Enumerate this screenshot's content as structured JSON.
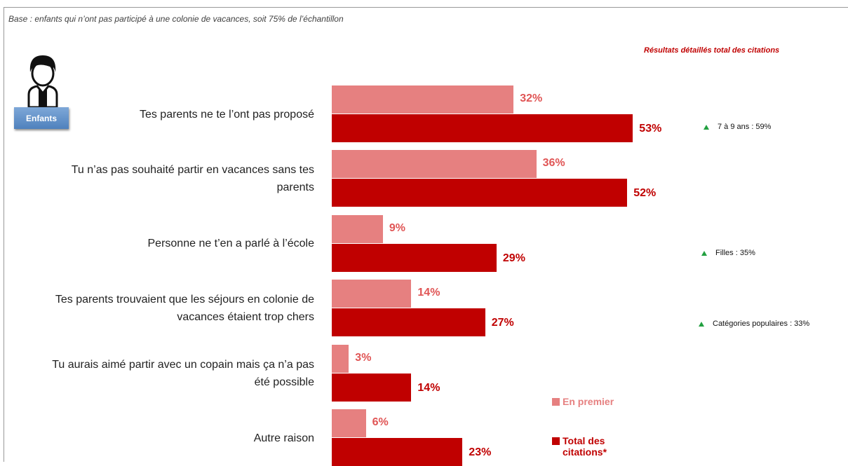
{
  "chart_data": {
    "type": "bar",
    "orientation": "horizontal",
    "subtitle": "Base : enfants qui n’ont pas participé à une colonie de vacances, soit 75% de l’échantillon",
    "note": "Résultats détaillés total des citations",
    "badge": "Enfants",
    "categories": [
      "Tes parents ne te l’ont pas proposé",
      "Tu n’as pas souhaité partir en vacances sans tes parents",
      "Personne ne t’en a parlé à l’école",
      "Tes parents trouvaient que les séjours en colonie de vacances étaient trop chers",
      "Tu aurais aimé partir avec un copain mais ça n’a pas été possible",
      "Autre raison"
    ],
    "series": [
      {
        "name": "En premier",
        "color": "#e68080",
        "label_color": "#e05555",
        "values": [
          32,
          36,
          9,
          14,
          3,
          6
        ],
        "value_labels": [
          "32%",
          "36%",
          "9%",
          "14%",
          "3%",
          "6%"
        ]
      },
      {
        "name": "Total des citations*",
        "color": "#c00000",
        "label_color": "#c00000",
        "values": [
          53,
          52,
          29,
          27,
          14,
          23
        ],
        "value_labels": [
          "53%",
          "52%",
          "29%",
          "27%",
          "14%",
          "23%"
        ]
      }
    ],
    "annotations": [
      "7 à 9 ans : 59%",
      "Filles : 35%",
      "Catégories populaires : 33%"
    ],
    "annotation_color": "#22a040"
  }
}
